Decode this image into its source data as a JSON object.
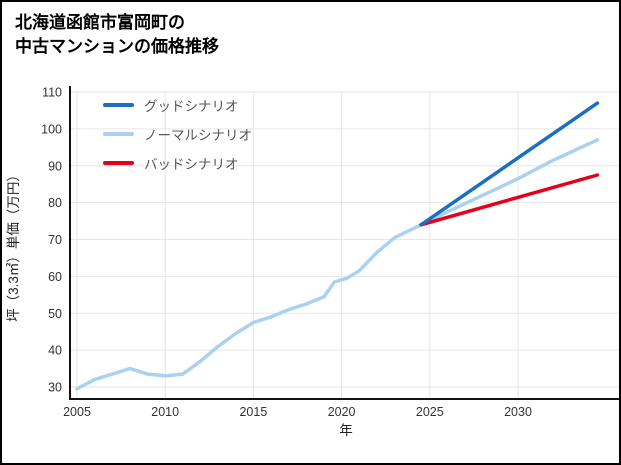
{
  "title": {
    "line1": "北海道函館市富岡町の",
    "line2": "中古マンションの価格推移"
  },
  "chart_data": {
    "type": "line",
    "title": "北海道函館市富岡町の中古マンションの価格推移",
    "xlabel": "年",
    "ylabel": "坪（3.3㎡）単価（万円）",
    "xlim": [
      2005,
      2036
    ],
    "ylim": [
      27,
      110
    ],
    "xticks": [
      2005,
      2010,
      2015,
      2020,
      2025,
      2030
    ],
    "yticks": [
      30,
      40,
      50,
      60,
      70,
      80,
      90,
      100,
      110
    ],
    "grid": true,
    "legend_position": "top-left",
    "colors": {
      "grid": "#e6e6e6",
      "axis": "#111111"
    },
    "series": [
      {
        "key": "good-scenario",
        "name": "グッドシナリオ",
        "color": "#1a6fc4",
        "x": [
          2024.5,
          2034.5
        ],
        "y": [
          74,
          107
        ]
      },
      {
        "key": "normal-scenario",
        "name": "ノーマルシナリオ",
        "color": "#a9d2f2",
        "x": [
          2005,
          2006,
          2007,
          2008,
          2009,
          2010,
          2011,
          2012,
          2013,
          2014,
          2015,
          2016,
          2017,
          2018,
          2019,
          2019.6,
          2020.3,
          2021,
          2022,
          2023,
          2024.5,
          2026,
          2028,
          2030,
          2032,
          2034.5
        ],
        "y": [
          29.5,
          32,
          33.5,
          35,
          33.5,
          33,
          33.5,
          37,
          41,
          44.5,
          47.5,
          49,
          51,
          52.5,
          54.5,
          58.5,
          59.5,
          61.5,
          66.5,
          70.5,
          74,
          77.5,
          82,
          86.5,
          91.5,
          97
        ]
      },
      {
        "key": "bad-scenario",
        "name": "バッドシナリオ",
        "color": "#e60019",
        "x": [
          2024.5,
          2034.5
        ],
        "y": [
          74,
          87.5
        ]
      }
    ]
  }
}
